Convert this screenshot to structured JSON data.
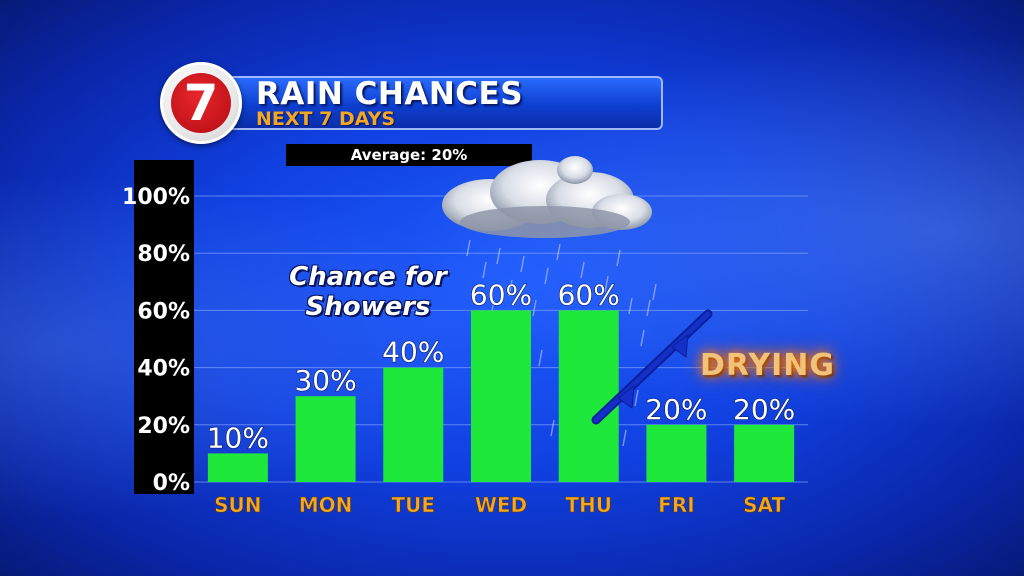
{
  "header": {
    "logo_text": "7",
    "title": "RAIN CHANCES",
    "subtitle": "NEXT 7 DAYS",
    "average_label": "Average: 20%"
  },
  "annotations": {
    "showers_line1": "Chance for",
    "showers_line2": "Showers",
    "drying": "DRYING"
  },
  "colors": {
    "bar": "#1ee83a",
    "category_text": "#f5a623",
    "background": "#1040e0",
    "front_line": "#1430c8"
  },
  "icons": [
    "cloud-rain-icon",
    "cold-front-icon"
  ],
  "chart_data": {
    "type": "bar",
    "title": "RAIN CHANCES",
    "subtitle": "NEXT 7 DAYS",
    "categories": [
      "SUN",
      "MON",
      "TUE",
      "WED",
      "THU",
      "FRI",
      "SAT"
    ],
    "values": [
      10,
      30,
      40,
      60,
      60,
      20,
      20
    ],
    "value_labels": [
      "10%",
      "30%",
      "40%",
      "60%",
      "60%",
      "20%",
      "20%"
    ],
    "y_ticks": [
      0,
      20,
      40,
      60,
      80,
      100
    ],
    "y_tick_labels": [
      "0%",
      "20%",
      "40%",
      "60%",
      "80%",
      "100%"
    ],
    "ylim": [
      0,
      100
    ],
    "grid": true
  }
}
